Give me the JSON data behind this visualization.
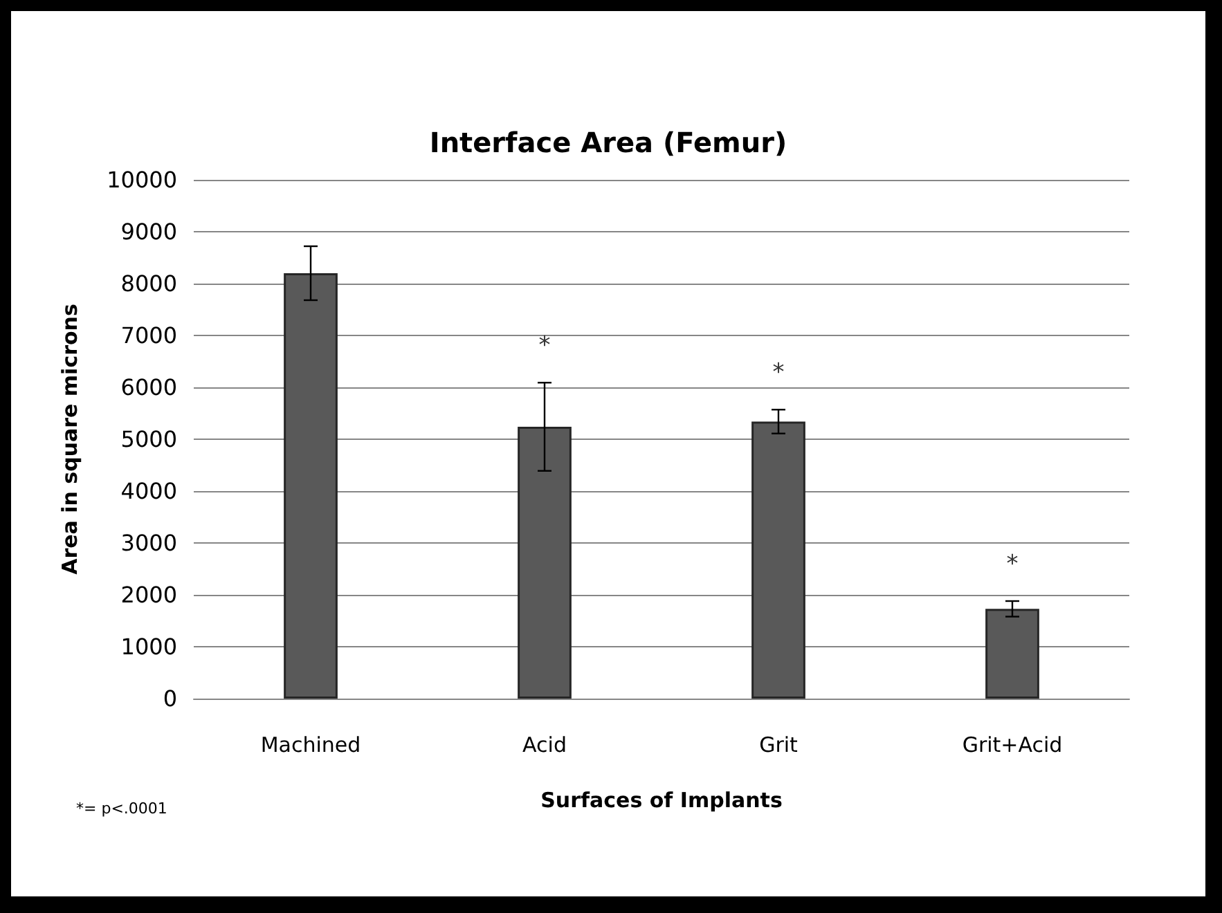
{
  "chart_data": {
    "type": "bar",
    "title": "Interface Area (Femur)",
    "xlabel": "Surfaces of Implants",
    "ylabel": "Area in square microns",
    "categories": [
      "Machined",
      "Acid",
      "Grit",
      "Grit+Acid"
    ],
    "values": [
      8200,
      5240,
      5340,
      1730
    ],
    "errors": [
      520,
      850,
      230,
      150
    ],
    "color": "#595959",
    "ylim": [
      0,
      10000
    ],
    "yticks": [
      0,
      1000,
      2000,
      3000,
      4000,
      5000,
      6000,
      7000,
      8000,
      9000,
      10000
    ],
    "grid": "y",
    "annotations": [
      {
        "text": "*",
        "x": "Acid",
        "y": 5240
      },
      {
        "text": "*",
        "x": "Grit",
        "y": 5340
      },
      {
        "text": "*",
        "x": "Grit+Acid",
        "y": 1730
      },
      "*= p<.0001"
    ]
  }
}
